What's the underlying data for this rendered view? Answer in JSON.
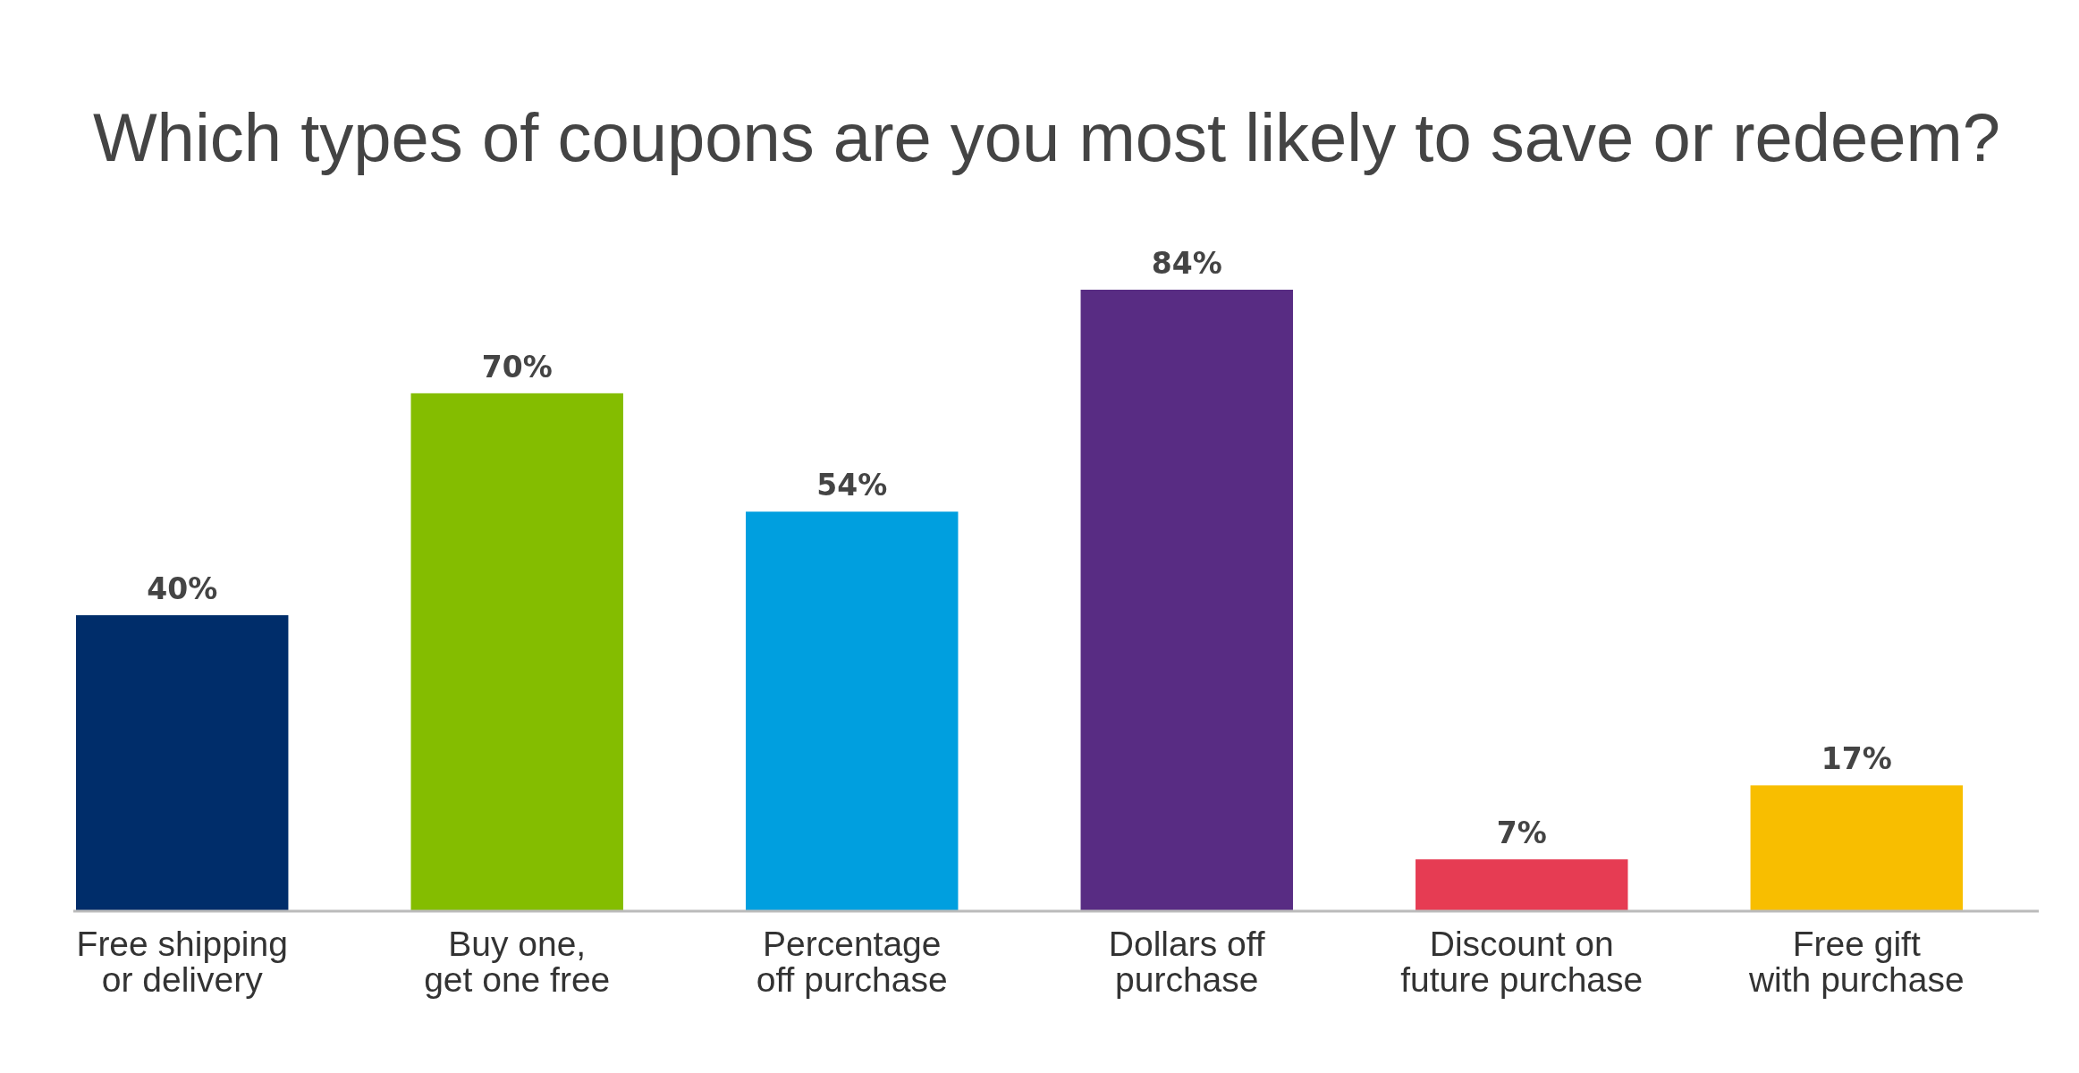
{
  "chart_data": {
    "type": "bar",
    "title": "Which types of coupons are you most likely to save or redeem?",
    "categories": [
      "Free shipping\nor delivery",
      "Buy one,\nget one free",
      "Percentage\noff purchase",
      "Dollars off\npurchase",
      "Discount on\nfuture purchase",
      "Free gift\nwith purchase"
    ],
    "values": [
      40,
      70,
      54,
      84,
      7,
      17
    ],
    "colors": [
      "#002d6a",
      "#84bd00",
      "#009fdf",
      "#582c83",
      "#e63c53",
      "#f8be00"
    ],
    "value_labels": [
      "40%",
      "70%",
      "54%",
      "84%",
      "7%",
      "17%"
    ],
    "tick_labels": "x"
  }
}
